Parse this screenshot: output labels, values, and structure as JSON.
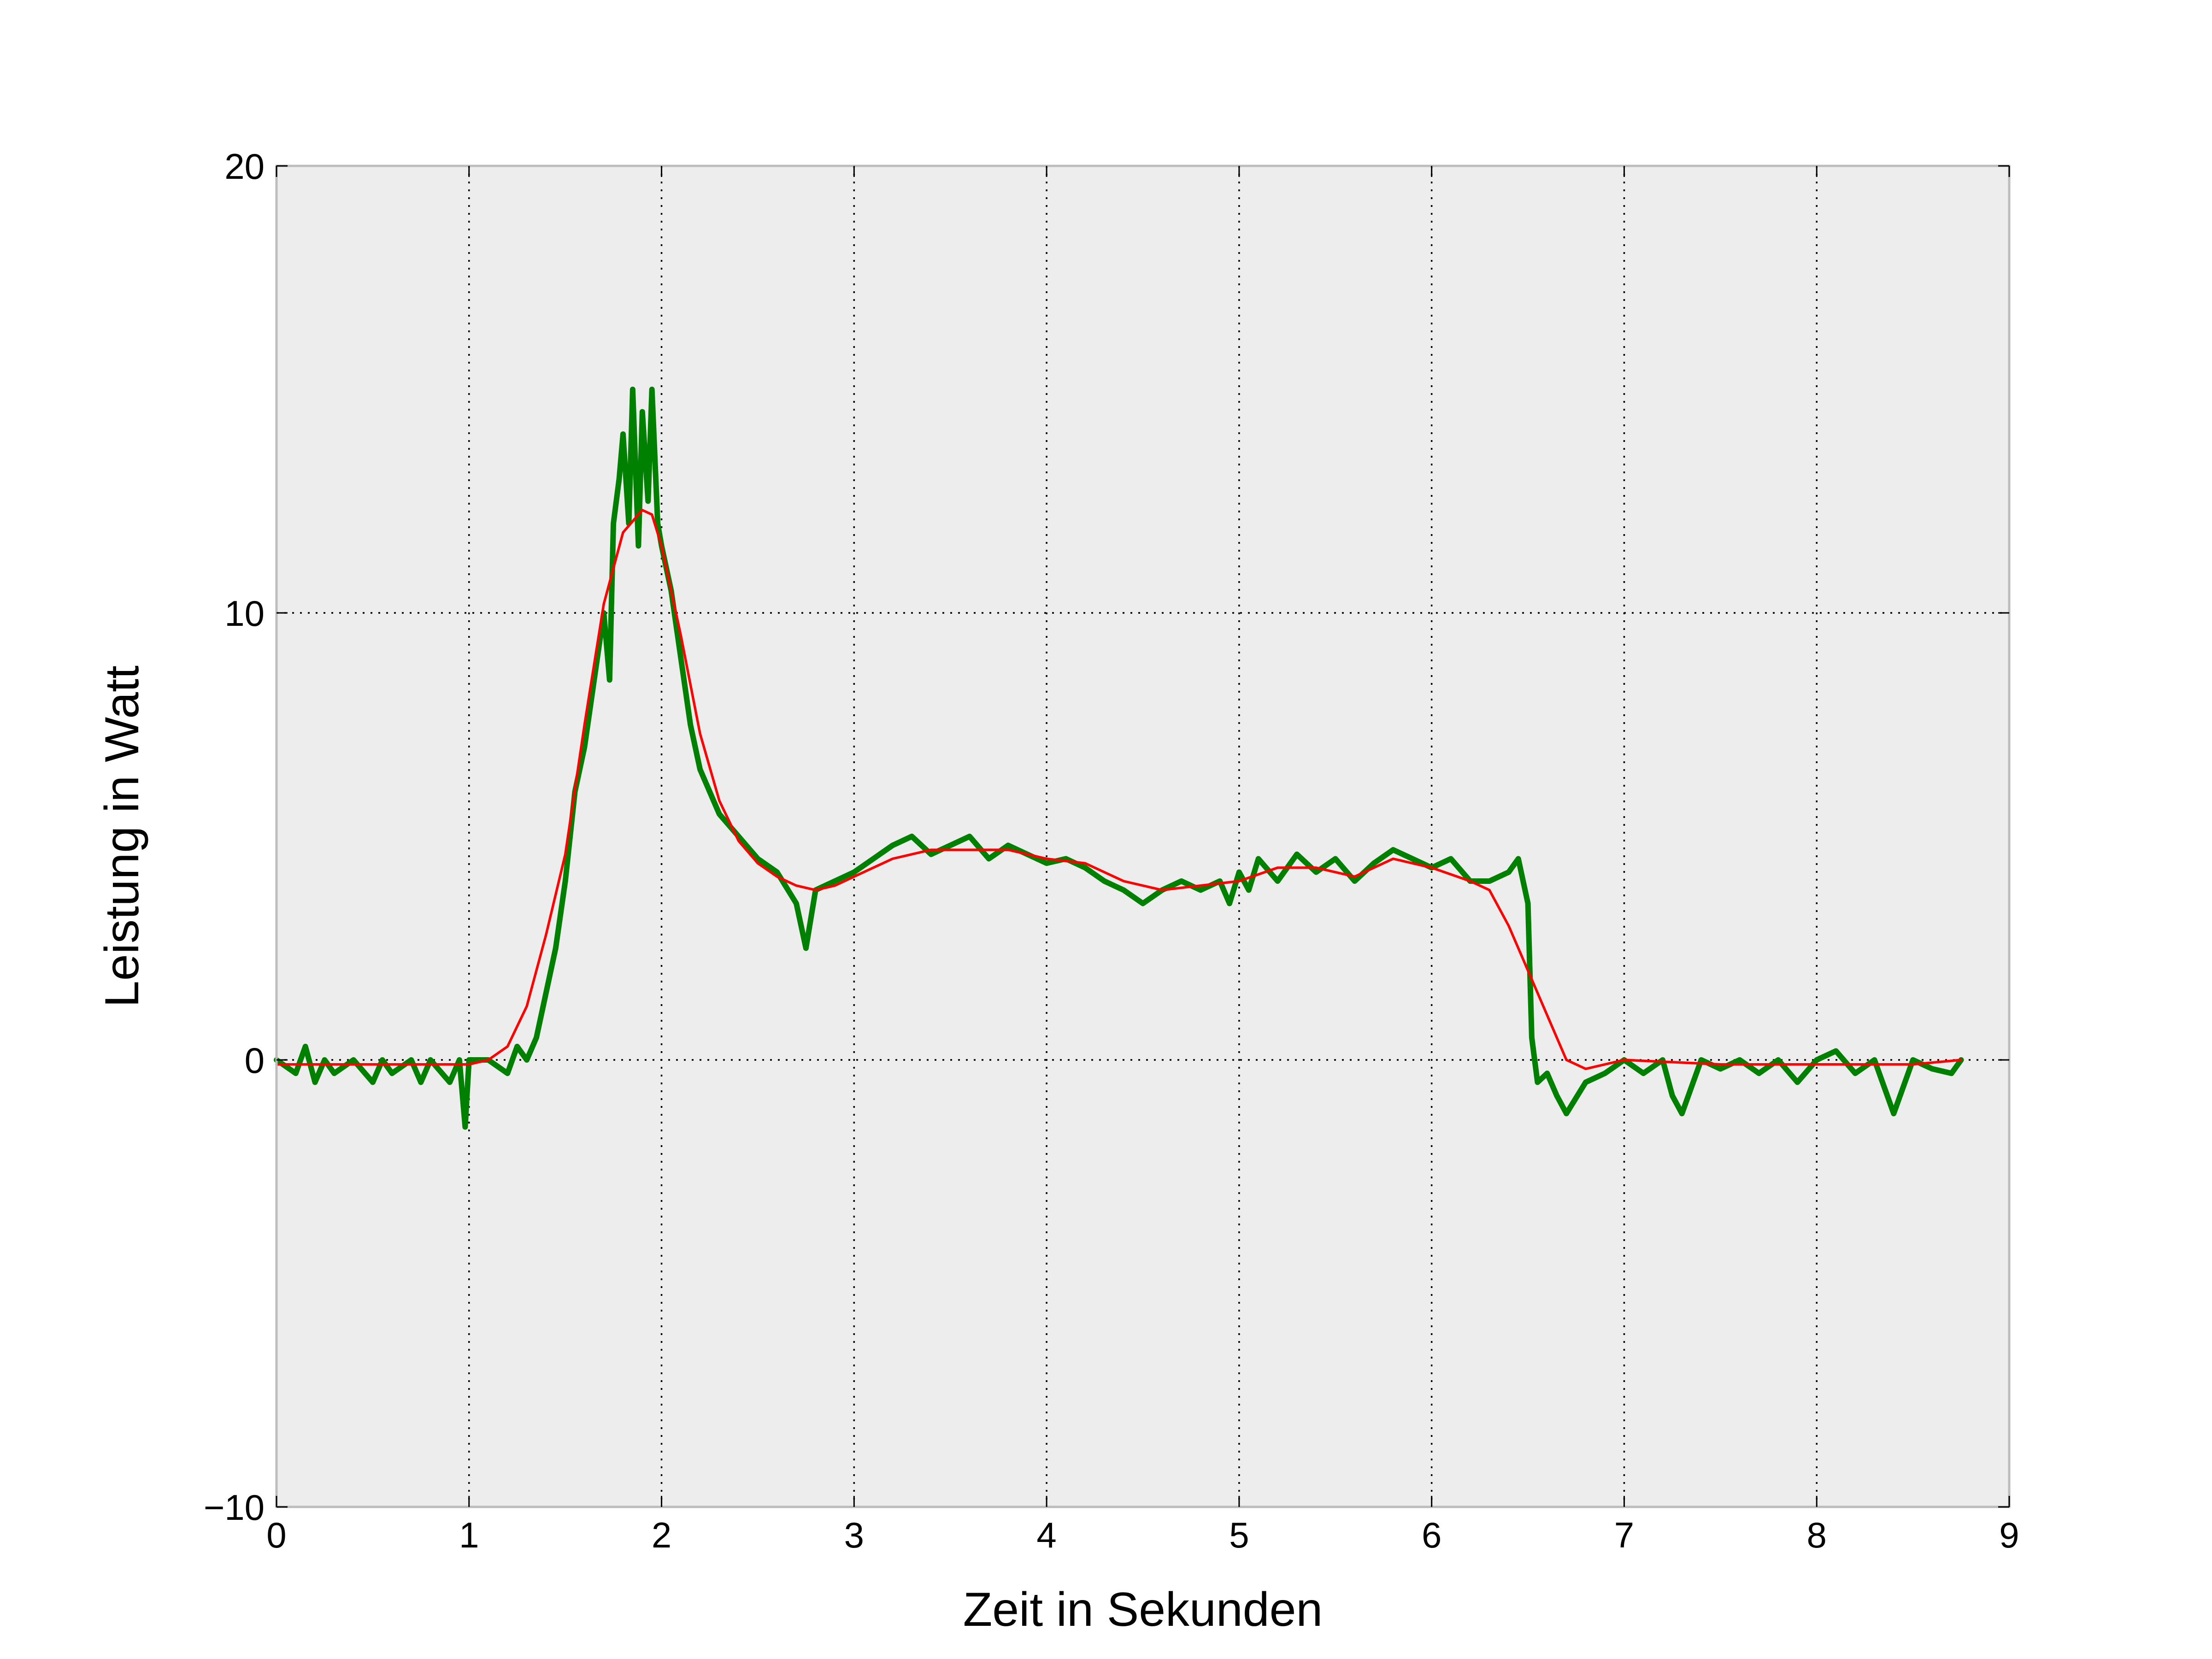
{
  "chart_data": {
    "type": "line",
    "title": "",
    "xlabel": "Zeit in Sekunden",
    "ylabel": "Leistung in Watt",
    "xlim": [
      0,
      9
    ],
    "ylim": [
      -10,
      20
    ],
    "xticks": [
      0,
      1,
      2,
      3,
      4,
      5,
      6,
      7,
      8,
      9
    ],
    "xtick_labels": [
      "0",
      "1",
      "2",
      "3",
      "4",
      "5",
      "6",
      "7",
      "8",
      "9"
    ],
    "yticks": [
      -10,
      0,
      10,
      20
    ],
    "ytick_labels": [
      "−10",
      "0",
      "10",
      "20"
    ],
    "grid": true,
    "background": "#ededed",
    "series": [
      {
        "color": "#008000",
        "x": [
          0,
          0.1,
          0.15,
          0.2,
          0.25,
          0.3,
          0.4,
          0.5,
          0.55,
          0.6,
          0.7,
          0.75,
          0.8,
          0.9,
          0.95,
          0.98,
          1.0,
          1.1,
          1.2,
          1.25,
          1.3,
          1.35,
          1.4,
          1.45,
          1.5,
          1.55,
          1.6,
          1.65,
          1.7,
          1.73,
          1.75,
          1.78,
          1.8,
          1.83,
          1.85,
          1.88,
          1.9,
          1.93,
          1.95,
          1.98,
          2.0,
          2.05,
          2.1,
          2.15,
          2.2,
          2.3,
          2.4,
          2.5,
          2.6,
          2.7,
          2.75,
          2.8,
          2.9,
          3.0,
          3.1,
          3.2,
          3.3,
          3.4,
          3.5,
          3.6,
          3.7,
          3.8,
          3.9,
          4.0,
          4.1,
          4.2,
          4.3,
          4.4,
          4.5,
          4.6,
          4.7,
          4.8,
          4.9,
          4.95,
          5.0,
          5.05,
          5.1,
          5.2,
          5.3,
          5.4,
          5.5,
          5.6,
          5.7,
          5.8,
          5.9,
          6.0,
          6.1,
          6.2,
          6.3,
          6.4,
          6.45,
          6.5,
          6.52,
          6.55,
          6.6,
          6.65,
          6.7,
          6.8,
          6.9,
          7.0,
          7.1,
          7.2,
          7.25,
          7.3,
          7.4,
          7.5,
          7.6,
          7.7,
          7.8,
          7.9,
          8.0,
          8.1,
          8.2,
          8.3,
          8.4,
          8.5,
          8.6,
          8.7,
          8.75
        ],
        "y": [
          0,
          -0.3,
          0.3,
          -0.5,
          0,
          -0.3,
          0,
          -0.5,
          0,
          -0.3,
          0,
          -0.5,
          0,
          -0.5,
          0,
          -1.5,
          0,
          0,
          -0.3,
          0.3,
          0,
          0.5,
          1.5,
          2.5,
          4,
          6,
          7,
          8.5,
          10,
          8.5,
          12,
          13,
          14,
          12,
          15,
          11.5,
          14.5,
          12.5,
          15,
          12,
          11.5,
          10.5,
          9,
          7.5,
          6.5,
          5.5,
          5,
          4.5,
          4.2,
          3.5,
          2.5,
          3.8,
          4,
          4.2,
          4.5,
          4.8,
          5,
          4.6,
          4.8,
          5,
          4.5,
          4.8,
          4.6,
          4.4,
          4.5,
          4.3,
          4,
          3.8,
          3.5,
          3.8,
          4,
          3.8,
          4,
          3.5,
          4.2,
          3.8,
          4.5,
          4,
          4.6,
          4.2,
          4.5,
          4,
          4.4,
          4.7,
          4.5,
          4.3,
          4.5,
          4,
          4,
          4.2,
          4.5,
          3.5,
          0.5,
          -0.5,
          -0.3,
          -0.8,
          -1.2,
          -0.5,
          -0.3,
          0,
          -0.3,
          0,
          -0.8,
          -1.2,
          0,
          -0.2,
          0,
          -0.3,
          0,
          -0.5,
          0,
          0.2,
          -0.3,
          0,
          -1.2,
          0,
          -0.2,
          -0.3,
          0
        ]
      },
      {
        "color": "#ff0000",
        "x": [
          0,
          0.5,
          1.0,
          1.1,
          1.2,
          1.3,
          1.4,
          1.5,
          1.6,
          1.7,
          1.8,
          1.9,
          1.95,
          2.0,
          2.1,
          2.2,
          2.3,
          2.4,
          2.5,
          2.6,
          2.7,
          2.8,
          2.9,
          3.0,
          3.2,
          3.4,
          3.6,
          3.8,
          4.0,
          4.2,
          4.4,
          4.6,
          4.8,
          5.0,
          5.2,
          5.4,
          5.6,
          5.8,
          6.0,
          6.2,
          6.3,
          6.4,
          6.5,
          6.6,
          6.7,
          6.8,
          7.0,
          7.5,
          8.0,
          8.5,
          8.75
        ],
        "y": [
          -0.1,
          -0.1,
          -0.1,
          0,
          0.3,
          1.2,
          2.8,
          4.6,
          7.5,
          10.2,
          11.8,
          12.3,
          12.2,
          11.5,
          9.5,
          7.3,
          5.8,
          4.9,
          4.4,
          4.1,
          3.9,
          3.8,
          3.9,
          4.1,
          4.5,
          4.7,
          4.7,
          4.7,
          4.5,
          4.4,
          4.0,
          3.8,
          3.9,
          4.0,
          4.3,
          4.3,
          4.1,
          4.5,
          4.3,
          4.0,
          3.8,
          3.0,
          2.0,
          1.0,
          0.0,
          -0.2,
          0,
          -0.1,
          -0.1,
          -0.1,
          0
        ]
      }
    ]
  }
}
